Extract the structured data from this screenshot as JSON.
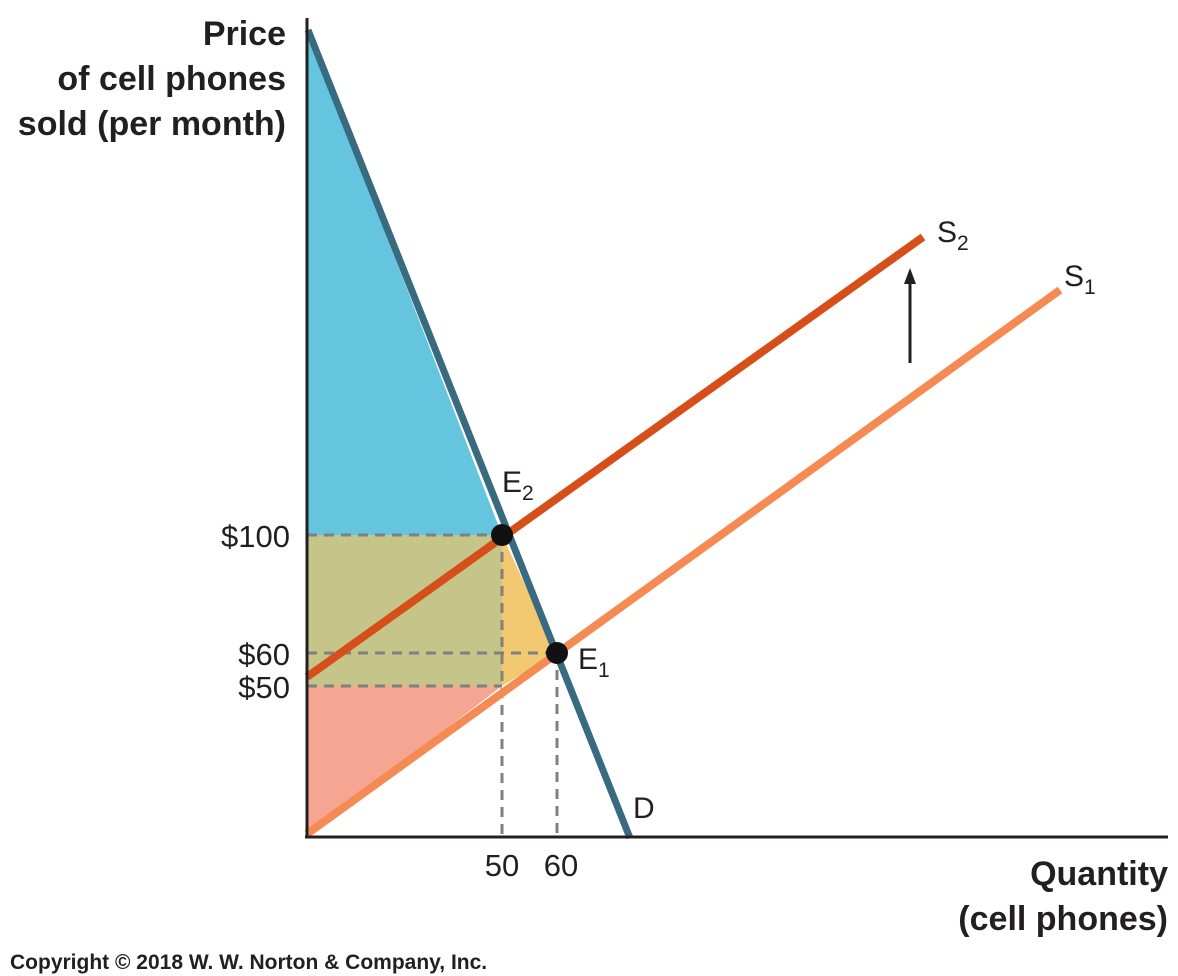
{
  "y_axis_title": [
    "Price",
    "of cell phones",
    "sold (per month)"
  ],
  "x_axis_title": [
    "Quantity",
    "(cell phones)"
  ],
  "price_ticks": [
    "$100",
    "$60",
    "$50"
  ],
  "quantity_ticks": [
    "50",
    "60"
  ],
  "curves": {
    "demand": "D",
    "supply_new": {
      "letter": "S",
      "sub": "2"
    },
    "supply_old": {
      "letter": "S",
      "sub": "1"
    }
  },
  "equilibria": {
    "new": {
      "letter": "E",
      "sub": "2"
    },
    "old": {
      "letter": "E",
      "sub": "1"
    }
  },
  "copyright": "Copyright © 2018 W. W. Norton & Company, Inc.",
  "colors": {
    "demand": "#386a80",
    "supply_new": "#d64f1a",
    "supply_old": "#f58a52",
    "consumer_surplus": "#66c5de",
    "transfer_region": "#c5c58a",
    "deadweight_loss": "#f2c870",
    "producer_surplus": "#f5a592"
  }
}
